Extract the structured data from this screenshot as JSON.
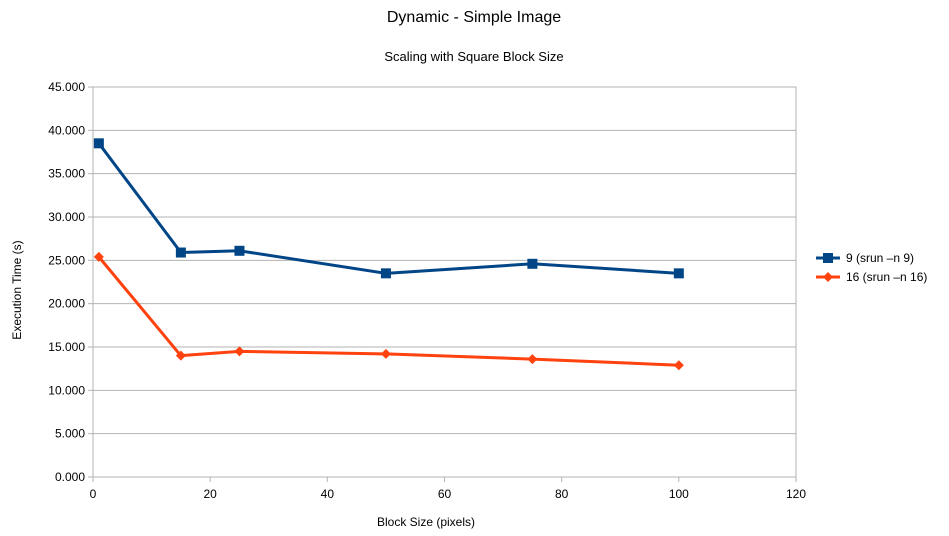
{
  "chart_data": {
    "type": "line",
    "title": "Dynamic - Simple Image",
    "subtitle": "Scaling with Square Block Size",
    "xlabel": "Block Size (pixels)",
    "ylabel": "Execution Time (s)",
    "xlim": [
      0,
      120
    ],
    "ylim": [
      0,
      45
    ],
    "xticks": [
      0,
      20,
      40,
      60,
      80,
      100,
      120
    ],
    "xtick_labels": [
      "0",
      "20",
      "40",
      "60",
      "80",
      "100",
      "120"
    ],
    "yticks": [
      0,
      5,
      10,
      15,
      20,
      25,
      30,
      35,
      40,
      45
    ],
    "ytick_labels": [
      "0.000",
      "5.000",
      "10.000",
      "15.000",
      "20.000",
      "25.000",
      "30.000",
      "35.000",
      "40.000",
      "45.000"
    ],
    "grid": true,
    "legend_position": "right",
    "series": [
      {
        "name": "9 (srun –n 9)",
        "color": "#004586",
        "marker": "square",
        "x": [
          1,
          15,
          25,
          50,
          75,
          100
        ],
        "y": [
          38.5,
          25.9,
          26.1,
          23.5,
          24.6,
          23.5
        ]
      },
      {
        "name": "16 (srun –n 16)",
        "color": "#ff420e",
        "marker": "diamond",
        "x": [
          1,
          15,
          25,
          50,
          75,
          100
        ],
        "y": [
          25.4,
          14.0,
          14.5,
          14.2,
          13.6,
          12.9
        ]
      }
    ]
  }
}
